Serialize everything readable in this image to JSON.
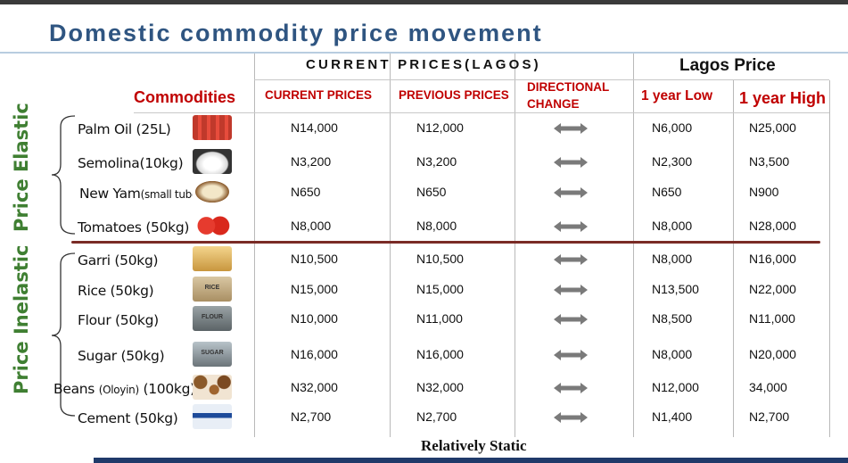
{
  "title": "Domestic commodity price movement",
  "group_headers": {
    "current_prices_lagos": "CURRENT PRICES(LAGOS)",
    "lagos_price": "Lagos Price"
  },
  "columns": {
    "commodities": "Commodities",
    "current_prices": "CURRENT PRICES",
    "previous_prices": "PREVIOUS PRICES",
    "directional_change_1": "DIRECTIONAL",
    "directional_change_2": "CHANGE",
    "year_low": "1 year Low",
    "year_high": "1 year High"
  },
  "side_labels": {
    "elastic": "Price Elastic",
    "inelastic": "Price Inelastic"
  },
  "rows": [
    {
      "name": "Palm Oil (25L)",
      "current": "N14,000",
      "previous": "N12,000",
      "low": "N6,000",
      "high": "N25,000",
      "icon": "palm-oil-icon"
    },
    {
      "name": "Semolina(10kg)",
      "current": "N3,200",
      "previous": "N3,200",
      "low": "N2,300",
      "high": "N3,500",
      "icon": "semolina-icon"
    },
    {
      "name": "New Yam",
      "name_suffix": "(small tuber)",
      "current": "N650",
      "previous": "N650",
      "low": "N650",
      "high": "N900",
      "icon": "yam-icon"
    },
    {
      "name": "Tomatoes (50kg)",
      "current": "N8,000",
      "previous": "N8,000",
      "low": "N8,000",
      "high": "N28,000",
      "icon": "tomato-icon"
    },
    {
      "name": "Garri (50kg)",
      "current": "N10,500",
      "previous": "N10,500",
      "low": "N8,000",
      "high": "N16,000",
      "icon": "garri-icon"
    },
    {
      "name": "Rice (50kg)",
      "current": "N15,000",
      "previous": "N15,000",
      "low": "N13,500",
      "high": "N22,000",
      "icon": "rice-sack-icon",
      "icon_text": "RICE"
    },
    {
      "name": "Flour (50kg)",
      "current": "N10,000",
      "previous": "N11,000",
      "low": "N8,500",
      "high": "N11,000",
      "icon": "flour-sack-icon",
      "icon_text": "FLOUR"
    },
    {
      "name": "Sugar (50kg)",
      "current": "N16,000",
      "previous": "N16,000",
      "low": "N8,000",
      "high": "N20,000",
      "icon": "sugar-sack-icon",
      "icon_text": "SUGAR"
    },
    {
      "name": "Beans ",
      "name_small": "(Oloyin)",
      "name_tail": " (100kg)",
      "current": "N32,000",
      "previous": "N32,000",
      "low": "N12,000",
      "high": "34,000",
      "icon": "beans-icon"
    },
    {
      "name": "Cement (50kg)",
      "current": "N2,700",
      "previous": "N2,700",
      "low": "N1,400",
      "high": "N2,700",
      "icon": "cement-bag-icon"
    }
  ],
  "direction_icon": "double-arrow-icon",
  "footer": "Relatively Static",
  "colors": {
    "title": "#2f5581",
    "header_red": "#c00000",
    "side_green": "#3f7f32",
    "divider": "#7a2b26",
    "bottom_bar": "#203a6a"
  }
}
